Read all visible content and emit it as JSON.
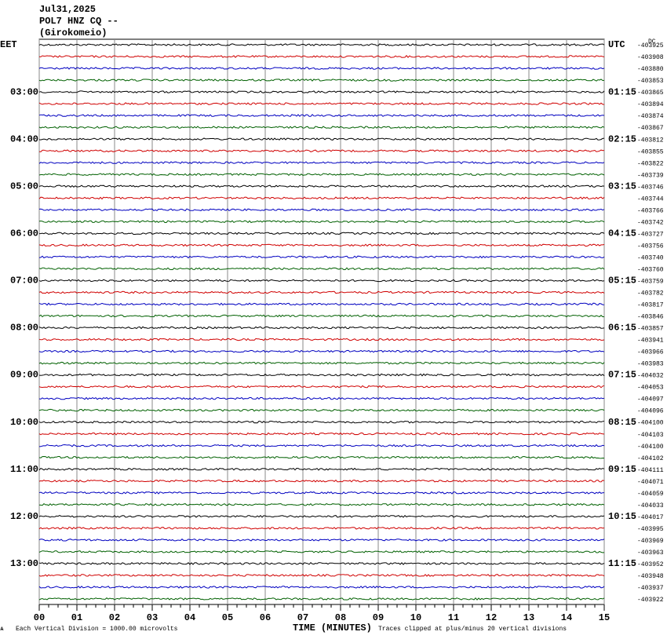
{
  "chart_data": {
    "type": "helicorder",
    "title_lines": [
      "Jul31,2025",
      "POL7 HNZ CQ --",
      "(Girokomeio)"
    ],
    "left_labels": [
      "EET",
      "03:00",
      "04:00",
      "05:00",
      "06:00",
      "07:00",
      "08:00",
      "09:00",
      "10:00",
      "11:00",
      "12:00",
      "13:00"
    ],
    "right_labels": [
      "UTC",
      "01:15",
      "02:15",
      "03:15",
      "04:15",
      "05:15",
      "06:15",
      "07:15",
      "08:15",
      "09:15",
      "10:15",
      "11:15"
    ],
    "dc_label": "DC",
    "dc_values": [
      -403925,
      -403908,
      -403880,
      -403853,
      -403865,
      -403894,
      -403874,
      -403867,
      -403812,
      -403855,
      -403822,
      -403739,
      -403746,
      -403744,
      -403766,
      -403742,
      -403727,
      -403756,
      -403740,
      -403760,
      -403759,
      -403782,
      -403817,
      -403846,
      -403857,
      -403941,
      -403966,
      -403983,
      -404032,
      -404053,
      -404097,
      -404096,
      -404100,
      -404103,
      -404100,
      -404102,
      -404111,
      -404071,
      -404059,
      -404033,
      -404017,
      -403995,
      -403969,
      -403963,
      -403952,
      -403948,
      -403937,
      -403922
    ],
    "trace_colors": [
      "#000000",
      "#d00000",
      "#0000c0",
      "#006000"
    ],
    "xlim": [
      0,
      15
    ],
    "xticks": [
      {
        "value": 0,
        "label": "00"
      },
      {
        "value": 1,
        "label": "01"
      },
      {
        "value": 2,
        "label": "02"
      },
      {
        "value": 3,
        "label": "03"
      },
      {
        "value": 4,
        "label": "04"
      },
      {
        "value": 5,
        "label": "05"
      },
      {
        "value": 6,
        "label": "06"
      },
      {
        "value": 7,
        "label": "07"
      },
      {
        "value": 8,
        "label": "08"
      },
      {
        "value": 9,
        "label": "09"
      },
      10,
      11,
      12,
      13,
      14,
      15
    ],
    "x_label": "TIME (MINUTES)",
    "footnote_left": "Each Vertical Division = 1000.00 microvolts",
    "footnote_right": "Traces clipped at plus/minus 20 vertical divisions"
  }
}
